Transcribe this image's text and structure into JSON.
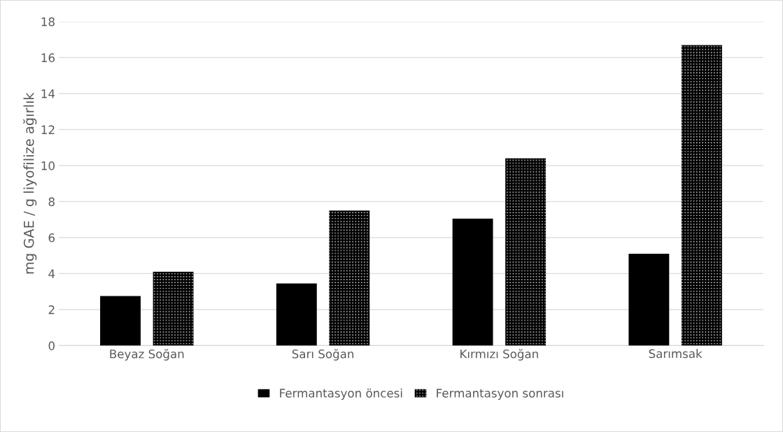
{
  "chart_data": {
    "type": "bar",
    "ylabel": "mg GAE / g liyofilize ağırlık",
    "categories": [
      "Beyaz Soğan",
      "Sarı Soğan",
      "Kırmızı Soğan",
      "Sarımsak"
    ],
    "series": [
      {
        "name": "Fermantasyon öncesi",
        "color": "#000000",
        "values": [
          2.75,
          3.45,
          7.05,
          5.1
        ]
      },
      {
        "name": "Fermantasyon sonrası",
        "color": "#000000",
        "values": [
          4.1,
          7.5,
          10.4,
          16.7
        ]
      }
    ],
    "ylim": [
      0,
      18
    ],
    "yticks": [
      0,
      2,
      4,
      6,
      8,
      10,
      12,
      14,
      16,
      18
    ],
    "grid": "y",
    "legend": "bottom"
  }
}
